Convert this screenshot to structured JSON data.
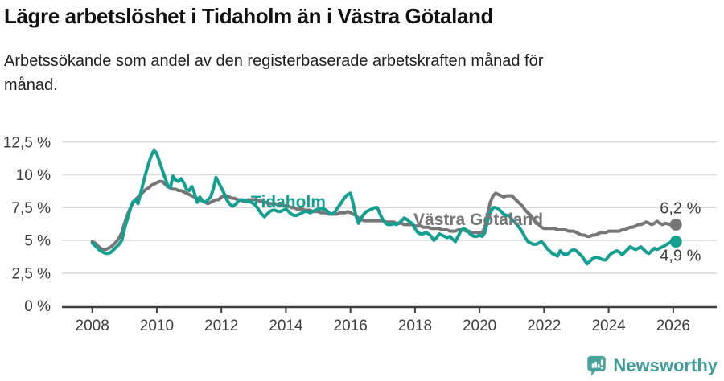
{
  "chart_data": {
    "type": "line",
    "title": "Lägre arbetslöshet i Tidaholm än i Västra Götaland",
    "subtitle": "Arbetssökande som andel av den registerbaserade arbetskraften månad för månad.",
    "frequency": "monthly",
    "x_start_month": "2008-01",
    "x_end_month": "2026-02",
    "x_tick_labels": [
      "2008",
      "2010",
      "2012",
      "2014",
      "2016",
      "2018",
      "2020",
      "2022",
      "2024",
      "2026"
    ],
    "x_tick_years": [
      2008,
      2010,
      2012,
      2014,
      2016,
      2018,
      2020,
      2022,
      2024,
      2026
    ],
    "y_tick_labels": [
      "0 %",
      "2,5 %",
      "5 %",
      "7,5 %",
      "10 %",
      "12,5 %"
    ],
    "y_tick_values": [
      0,
      2.5,
      5,
      7.5,
      10,
      12.5
    ],
    "ylim": [
      0,
      13.3
    ],
    "grid": "horizontal",
    "legend": "inline-series-labels",
    "series": [
      {
        "name": "Västra Götaland",
        "color": "#767676",
        "end_value_label": "6,2 %",
        "values": [
          4.9,
          4.8,
          4.6,
          4.4,
          4.3,
          4.3,
          4.4,
          4.5,
          4.7,
          4.9,
          5.2,
          5.6,
          6.3,
          6.9,
          7.4,
          7.8,
          8.1,
          8.3,
          8.5,
          8.7,
          8.9,
          9.0,
          9.2,
          9.3,
          9.4,
          9.5,
          9.5,
          9.3,
          9.1,
          9.0,
          8.9,
          8.9,
          8.8,
          8.8,
          8.7,
          8.6,
          8.5,
          8.4,
          8.3,
          8.2,
          8.1,
          8.0,
          7.9,
          7.8,
          7.9,
          8.0,
          8.1,
          8.1,
          8.3,
          8.4,
          8.4,
          8.3,
          8.2,
          8.2,
          8.1,
          8.1,
          8.0,
          8.0,
          8.1,
          8.1,
          8.1,
          8.1,
          8.0,
          8.0,
          7.9,
          7.9,
          7.8,
          7.8,
          7.8,
          7.7,
          7.7,
          7.7,
          7.6,
          7.6,
          7.5,
          7.5,
          7.4,
          7.4,
          7.4,
          7.3,
          7.3,
          7.3,
          7.2,
          7.2,
          7.2,
          7.1,
          7.1,
          7.1,
          7.0,
          7.0,
          7.0,
          7.0,
          7.1,
          7.1,
          7.1,
          7.2,
          7.1,
          7.0,
          6.9,
          6.7,
          6.6,
          6.5,
          6.5,
          6.5,
          6.5,
          6.5,
          6.5,
          6.5,
          6.5,
          6.4,
          6.4,
          6.4,
          6.4,
          6.3,
          6.3,
          6.3,
          6.2,
          6.2,
          6.2,
          6.2,
          6.1,
          6.1,
          6.1,
          6.0,
          6.0,
          6.0,
          5.9,
          5.9,
          5.9,
          5.9,
          5.8,
          5.8,
          5.8,
          5.7,
          5.7,
          5.7,
          5.8,
          5.8,
          5.8,
          5.7,
          5.7,
          5.6,
          5.6,
          5.6,
          5.6,
          5.6,
          6.0,
          7.0,
          7.9,
          8.4,
          8.6,
          8.5,
          8.4,
          8.3,
          8.4,
          8.4,
          8.4,
          8.2,
          8.0,
          7.8,
          7.6,
          7.3,
          7.1,
          6.9,
          6.6,
          6.4,
          6.2,
          6.0,
          5.9,
          5.9,
          5.9,
          5.9,
          5.9,
          5.8,
          5.8,
          5.8,
          5.8,
          5.7,
          5.7,
          5.7,
          5.6,
          5.5,
          5.4,
          5.4,
          5.3,
          5.3,
          5.4,
          5.4,
          5.5,
          5.6,
          5.6,
          5.6,
          5.7,
          5.7,
          5.7,
          5.7,
          5.7,
          5.8,
          5.8,
          5.9,
          6.0,
          6.0,
          6.1,
          6.2,
          6.2,
          6.3,
          6.4,
          6.3,
          6.2,
          6.3,
          6.45,
          6.3,
          6.2,
          6.3,
          6.25,
          6.2,
          6.2,
          6.2
        ]
      },
      {
        "name": "Tidaholm",
        "color": "#14a091",
        "end_value_label": "4,9 %",
        "values": [
          4.8,
          4.6,
          4.4,
          4.2,
          4.1,
          4.0,
          4.0,
          4.1,
          4.3,
          4.5,
          4.7,
          5.0,
          5.9,
          6.6,
          7.3,
          7.9,
          8.1,
          7.8,
          8.6,
          9.4,
          10.2,
          10.9,
          11.5,
          11.9,
          11.6,
          11.0,
          10.4,
          9.8,
          9.2,
          9.0,
          9.9,
          9.6,
          9.5,
          9.7,
          9.4,
          8.9,
          8.8,
          9.1,
          8.6,
          7.9,
          8.3,
          8.0,
          7.9,
          8.1,
          8.3,
          8.9,
          9.8,
          9.4,
          9.0,
          8.6,
          8.1,
          7.8,
          7.6,
          7.7,
          7.9,
          8.1,
          8.1,
          8.0,
          8.0,
          7.9,
          7.8,
          7.6,
          7.3,
          7.0,
          6.8,
          7.0,
          7.2,
          7.3,
          7.3,
          7.2,
          7.2,
          7.3,
          7.4,
          7.2,
          7.0,
          6.9,
          6.9,
          7.0,
          7.1,
          7.2,
          7.2,
          7.1,
          7.2,
          7.3,
          7.4,
          7.4,
          7.4,
          7.3,
          7.1,
          7.0,
          7.1,
          7.4,
          7.7,
          8.0,
          8.3,
          8.5,
          8.6,
          7.8,
          6.9,
          6.3,
          6.7,
          7.0,
          7.2,
          7.3,
          7.4,
          7.5,
          7.5,
          7.0,
          6.6,
          6.3,
          6.2,
          6.2,
          6.3,
          6.2,
          6.3,
          6.5,
          6.7,
          6.6,
          6.4,
          6.3,
          5.9,
          5.6,
          5.5,
          5.5,
          5.6,
          5.5,
          5.3,
          5.0,
          5.2,
          5.5,
          5.4,
          5.3,
          5.2,
          5.3,
          5.1,
          4.9,
          5.3,
          5.7,
          5.9,
          5.8,
          5.6,
          5.4,
          5.3,
          5.3,
          5.4,
          5.3,
          5.6,
          6.5,
          7.1,
          7.5,
          7.5,
          7.4,
          7.2,
          7.0,
          6.9,
          6.9,
          6.6,
          6.4,
          6.2,
          5.9,
          5.6,
          5.2,
          4.9,
          4.8,
          4.7,
          4.7,
          4.8,
          4.9,
          4.7,
          4.4,
          4.2,
          4.0,
          3.9,
          3.8,
          4.2,
          4.0,
          3.9,
          4.0,
          4.2,
          4.3,
          4.2,
          4.0,
          3.8,
          3.5,
          3.2,
          3.4,
          3.6,
          3.7,
          3.7,
          3.6,
          3.5,
          3.5,
          3.8,
          4.0,
          4.1,
          4.2,
          4.1,
          3.9,
          4.1,
          4.3,
          4.5,
          4.4,
          4.3,
          4.4,
          4.5,
          4.3,
          4.1,
          4.0,
          4.2,
          4.4,
          4.3,
          4.4,
          4.5,
          4.6,
          4.75,
          4.85,
          4.9,
          4.9
        ]
      }
    ]
  },
  "footer": {
    "brand": "Newsworthy"
  },
  "colors": {
    "grid": "#d9d9d9",
    "axis": "#3f3f3f",
    "axis_text": "#3d3d3d",
    "value_text": "#3d3d3d",
    "title_text": "#111111",
    "brand_teal": "#3f9e97",
    "logo_icon_teal": "#49a29b",
    "series_tidaholm": "#14a091",
    "series_vastra_gotaland": "#767676"
  }
}
